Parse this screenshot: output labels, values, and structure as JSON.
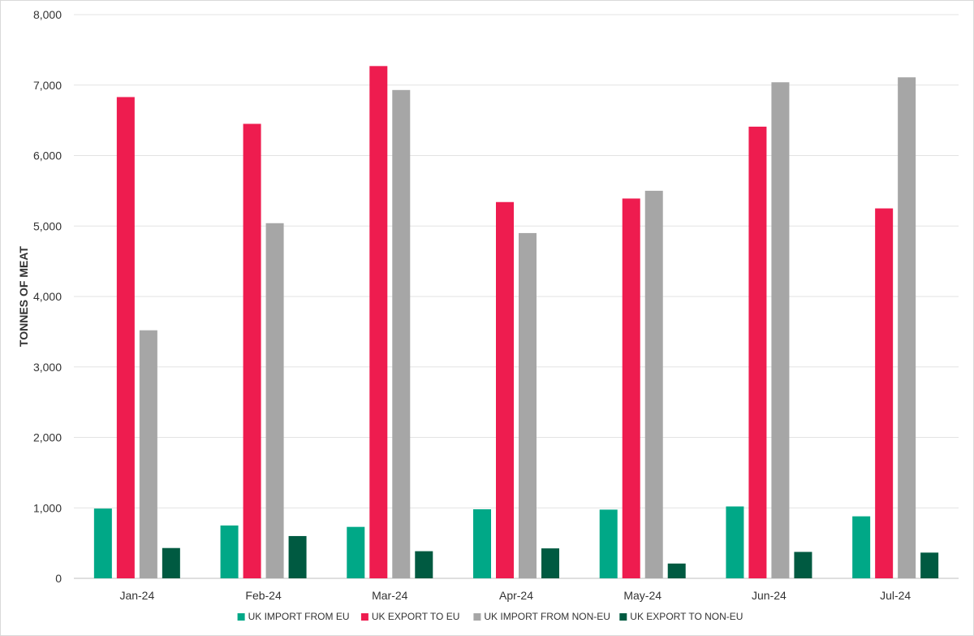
{
  "chart_data": {
    "type": "bar",
    "title": "",
    "xlabel": "",
    "ylabel": "TONNES OF MEAT",
    "ylim": [
      0,
      8000
    ],
    "yticks": [
      0,
      1000,
      2000,
      3000,
      4000,
      5000,
      6000,
      7000,
      8000
    ],
    "ytick_labels": [
      "0",
      "1,000",
      "2,000",
      "3,000",
      "4,000",
      "5,000",
      "6,000",
      "7,000",
      "8,000"
    ],
    "grid": true,
    "legend_position": "bottom",
    "categories": [
      "Jan-24",
      "Feb-24",
      "Mar-24",
      "Apr-24",
      "May-24",
      "Jun-24",
      "Jul-24"
    ],
    "series": [
      {
        "name": "UK IMPORT FROM EU",
        "color": "#00a887",
        "values": [
          990,
          750,
          730,
          980,
          975,
          1020,
          880
        ]
      },
      {
        "name": "UK EXPORT TO EU",
        "color": "#ee1c4f",
        "values": [
          6830,
          6450,
          7270,
          5340,
          5390,
          6410,
          5250
        ]
      },
      {
        "name": "UK IMPORT FROM NON-EU",
        "color": "#a6a6a6",
        "values": [
          3520,
          5040,
          6930,
          4900,
          5500,
          7040,
          7110
        ]
      },
      {
        "name": "UK EXPORT TO NON-EU",
        "color": "#005a41",
        "values": [
          430,
          600,
          385,
          425,
          210,
          375,
          365
        ]
      }
    ]
  }
}
